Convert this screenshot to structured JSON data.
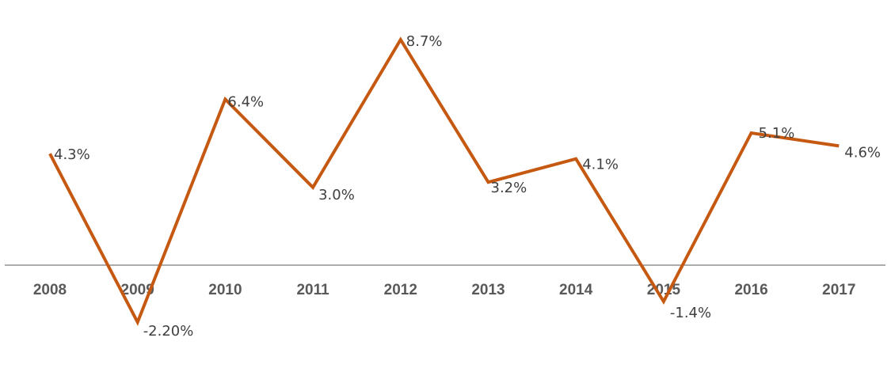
{
  "chart_data": {
    "type": "line",
    "categories": [
      "2008",
      "2009",
      "2010",
      "2011",
      "2012",
      "2013",
      "2014",
      "2015",
      "2016",
      "2017"
    ],
    "series": [
      {
        "values": [
          4.3,
          -2.2,
          6.4,
          3.0,
          8.7,
          3.2,
          4.1,
          -1.4,
          5.1,
          4.6
        ],
        "labels": [
          "4.3%",
          "-2.20%",
          "6.4%",
          "3.0%",
          "8.7%",
          "3.2%",
          "4.1%",
          "-1.4%",
          "5.1%",
          "4.6%"
        ],
        "color": "#c65911"
      }
    ],
    "title": "",
    "xlabel": "",
    "ylabel": "",
    "ylim": [
      -2.2,
      8.7
    ],
    "grid": false,
    "legend": "none",
    "axis_color": "#595959",
    "tick_color": "#595959",
    "label_color": "#404040"
  }
}
